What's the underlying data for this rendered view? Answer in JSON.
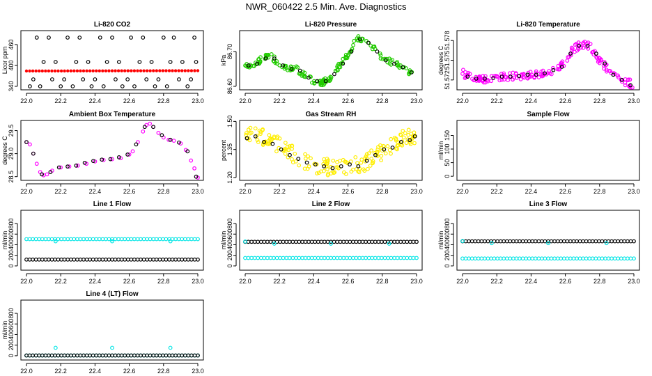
{
  "title": "NWR_060422  2.5 Min. Ave. Diagnostics",
  "chart_data": [
    {
      "type": "scatter",
      "title": "Li-820 CO2",
      "ylabel": "Licor ppm",
      "xlim": [
        22.0,
        23.0
      ],
      "ylim": [
        330,
        500
      ],
      "xticks": [
        "22.0",
        "22.2",
        "22.4",
        "22.6",
        "22.8",
        "23.0"
      ],
      "yticks": [
        {
          "v": 340,
          "label": "340"
        },
        {
          "v": 400,
          "label": "400"
        },
        {
          "v": 460,
          "label": "460"
        }
      ],
      "series": [
        {
          "color": "#ff0000",
          "shape": "dot",
          "points": "band",
          "x": [
            22.0,
            23.0
          ],
          "y": [
            384,
            385
          ]
        },
        {
          "color": "#000000",
          "shape": "ring",
          "x": [
            22.02,
            22.06,
            22.1,
            22.15,
            22.2,
            22.24,
            22.29,
            22.33,
            22.38,
            22.43,
            22.47,
            22.52,
            22.56,
            22.61,
            22.66,
            22.7,
            22.75,
            22.8,
            22.84,
            22.89,
            22.94,
            22.98
          ],
          "y": [
            340,
            480,
            410,
            360,
            340,
            480,
            410,
            360,
            340,
            480,
            410,
            360,
            340,
            480,
            410,
            360,
            340,
            480,
            410,
            360,
            340,
            480
          ]
        },
        {
          "color": "#000000",
          "shape": "ring",
          "x": [
            22.04,
            22.08,
            22.13,
            22.17,
            22.22,
            22.27,
            22.31,
            22.36,
            22.4,
            22.45,
            22.5,
            22.54,
            22.59,
            22.63,
            22.68,
            22.73,
            22.77,
            22.82,
            22.86,
            22.91,
            22.96,
            22.99
          ],
          "y": [
            360,
            340,
            480,
            410,
            360,
            340,
            480,
            410,
            360,
            340,
            480,
            410,
            360,
            340,
            480,
            410,
            360,
            340,
            480,
            410,
            360,
            410
          ]
        }
      ]
    },
    {
      "type": "scatter",
      "title": "Li-820 Pressure",
      "ylabel": "kPa",
      "xlim": [
        22.0,
        23.0
      ],
      "ylim": [
        86.59,
        86.76
      ],
      "xticks": [
        "22.0",
        "22.2",
        "22.4",
        "22.6",
        "22.8",
        "23.0"
      ],
      "yticks": [
        {
          "v": 86.6,
          "label": "86.60"
        },
        {
          "v": 86.7,
          "label": "86.70"
        }
      ],
      "series": [
        {
          "color": "#22cc00",
          "shape": "ring",
          "spread": 0.008,
          "x": [
            22.0,
            22.05,
            22.1,
            22.15,
            22.2,
            22.25,
            22.3,
            22.35,
            22.4,
            22.45,
            22.5,
            22.55,
            22.6,
            22.65,
            22.7,
            22.75,
            22.8,
            22.85,
            22.9,
            22.95,
            23.0
          ],
          "y": [
            86.66,
            86.66,
            86.68,
            86.69,
            86.66,
            86.65,
            86.65,
            86.63,
            86.615,
            86.61,
            86.625,
            86.66,
            86.69,
            86.74,
            86.73,
            86.71,
            86.68,
            86.67,
            86.66,
            86.64,
            86.64
          ]
        },
        {
          "color": "#000000",
          "shape": "ring",
          "x": [
            22.02,
            22.07,
            22.12,
            22.17,
            22.22,
            22.27,
            22.32,
            22.37,
            22.42,
            22.47,
            22.52,
            22.57,
            22.62,
            22.67,
            22.72,
            22.77,
            22.82,
            22.87,
            22.92,
            22.97
          ],
          "y": [
            86.66,
            86.665,
            86.68,
            86.68,
            86.66,
            86.65,
            86.645,
            86.625,
            86.615,
            86.615,
            86.635,
            86.665,
            86.7,
            86.735,
            86.725,
            86.7,
            86.675,
            86.665,
            86.655,
            86.64
          ]
        }
      ]
    },
    {
      "type": "scatter",
      "title": "Li-820 Temperature",
      "ylabel": "degrees C",
      "xlim": [
        22.0,
        23.0
      ],
      "ylim": [
        51.5705,
        51.5795
      ],
      "xticks": [
        "22.0",
        "22.2",
        "22.4",
        "22.6",
        "22.8",
        "23.0"
      ],
      "yticks": [
        {
          "v": 51.572,
          "label": "51.572"
        },
        {
          "v": 51.575,
          "label": "51.575"
        },
        {
          "v": 51.578,
          "label": "51.578"
        }
      ],
      "series": [
        {
          "color": "#ff00ff",
          "shape": "ring",
          "spread": 0.0006,
          "x": [
            22.0,
            22.05,
            22.1,
            22.15,
            22.2,
            22.25,
            22.3,
            22.35,
            22.4,
            22.45,
            22.5,
            22.55,
            22.6,
            22.65,
            22.7,
            22.75,
            22.8,
            22.85,
            22.9,
            22.95,
            23.0
          ],
          "y": [
            51.573,
            51.5725,
            51.5722,
            51.5722,
            51.5723,
            51.5725,
            51.5725,
            51.5726,
            51.5728,
            51.5728,
            51.573,
            51.5735,
            51.575,
            51.5768,
            51.5775,
            51.577,
            51.575,
            51.5735,
            51.5725,
            51.5718,
            51.5712
          ]
        },
        {
          "color": "#000000",
          "shape": "ring",
          "x": [
            22.03,
            22.08,
            22.13,
            22.18,
            22.23,
            22.28,
            22.33,
            22.38,
            22.43,
            22.48,
            22.53,
            22.58,
            22.63,
            22.68,
            22.73,
            22.78,
            22.83,
            22.88,
            22.93,
            22.98
          ],
          "y": [
            51.5725,
            51.5722,
            51.5722,
            51.5723,
            51.5725,
            51.5725,
            51.5726,
            51.5728,
            51.5728,
            51.573,
            51.5735,
            51.574,
            51.576,
            51.5772,
            51.5772,
            51.576,
            51.5745,
            51.5728,
            51.572,
            51.5712
          ]
        }
      ]
    },
    {
      "type": "scatter",
      "title": "Ambient Box Temperature",
      "ylabel": "degrees C",
      "xlim": [
        22.0,
        23.0
      ],
      "ylim": [
        28.42,
        29.72
      ],
      "xticks": [
        "22.0",
        "22.2",
        "22.4",
        "22.6",
        "22.8",
        "23.0"
      ],
      "yticks": [
        {
          "v": 28.5,
          "label": "28.5"
        },
        {
          "v": 29.0,
          "label": "29.0"
        },
        {
          "v": 29.5,
          "label": "29.5"
        }
      ],
      "series": [
        {
          "color": "#ff00ff",
          "shape": "ring",
          "x": [
            22.0,
            22.02,
            22.04,
            22.06,
            22.08,
            22.1,
            22.12,
            22.15,
            22.2,
            22.25,
            22.3,
            22.35,
            22.4,
            22.45,
            22.5,
            22.55,
            22.6,
            22.62,
            22.65,
            22.68,
            22.7,
            22.72,
            22.74,
            22.77,
            22.8,
            22.83,
            22.86,
            22.9,
            22.93,
            22.96,
            22.98,
            23.0
          ],
          "y": [
            29.25,
            29.2,
            29.0,
            28.78,
            28.6,
            28.53,
            28.55,
            28.63,
            28.7,
            28.72,
            28.74,
            28.78,
            28.83,
            28.86,
            28.88,
            28.9,
            28.98,
            29.05,
            29.25,
            29.48,
            29.62,
            29.65,
            29.58,
            29.45,
            29.35,
            29.3,
            29.28,
            29.22,
            29.08,
            28.85,
            28.68,
            28.48
          ]
        },
        {
          "color": "#000000",
          "shape": "ring",
          "x": [
            22.0,
            22.04,
            22.09,
            22.14,
            22.19,
            22.24,
            22.29,
            22.34,
            22.39,
            22.44,
            22.49,
            22.54,
            22.59,
            22.64,
            22.69,
            22.74,
            22.79,
            22.84,
            22.89,
            22.94,
            22.99
          ],
          "y": [
            29.25,
            29.0,
            28.55,
            28.6,
            28.7,
            28.72,
            28.74,
            28.8,
            28.84,
            28.87,
            28.88,
            28.92,
            28.98,
            29.2,
            29.58,
            29.58,
            29.4,
            29.3,
            29.24,
            29.05,
            28.5
          ]
        }
      ]
    },
    {
      "type": "scatter",
      "title": "Gas Stream RH",
      "ylabel": "percent",
      "xlim": [
        22.0,
        23.0
      ],
      "ylim": [
        1.185,
        1.505
      ],
      "xticks": [
        "22.0",
        "22.2",
        "22.4",
        "22.6",
        "22.8",
        "23.0"
      ],
      "yticks": [
        {
          "v": 1.2,
          "label": "1.20"
        },
        {
          "v": 1.35,
          "label": "1.35"
        },
        {
          "v": 1.5,
          "label": "1.50"
        }
      ],
      "series": [
        {
          "color": "#ffee00",
          "shape": "ring",
          "spread": 0.045,
          "x": [
            22.0,
            22.05,
            22.1,
            22.15,
            22.2,
            22.25,
            22.3,
            22.35,
            22.4,
            22.45,
            22.5,
            22.55,
            22.6,
            22.65,
            22.7,
            22.75,
            22.8,
            22.85,
            22.9,
            22.95,
            23.0
          ],
          "y": [
            1.42,
            1.43,
            1.42,
            1.4,
            1.37,
            1.34,
            1.31,
            1.29,
            1.27,
            1.26,
            1.255,
            1.25,
            1.26,
            1.27,
            1.28,
            1.31,
            1.34,
            1.37,
            1.4,
            1.42,
            1.43
          ]
        },
        {
          "color": "#000000",
          "shape": "ring",
          "x": [
            22.01,
            22.06,
            22.11,
            22.16,
            22.21,
            22.26,
            22.31,
            22.36,
            22.41,
            22.46,
            22.51,
            22.56,
            22.61,
            22.66,
            22.71,
            22.76,
            22.81,
            22.86,
            22.91,
            22.96,
            22.99
          ],
          "y": [
            1.41,
            1.42,
            1.39,
            1.38,
            1.35,
            1.32,
            1.3,
            1.28,
            1.27,
            1.26,
            1.25,
            1.26,
            1.27,
            1.26,
            1.29,
            1.32,
            1.35,
            1.36,
            1.39,
            1.4,
            1.42
          ]
        }
      ]
    },
    {
      "type": "scatter",
      "title": "Sample Flow",
      "ylabel": "ml/min",
      "xlim": [
        22.0,
        23.0
      ],
      "ylim": [
        -15,
        205
      ],
      "xticks": [
        "22.0",
        "22.2",
        "22.4",
        "22.6",
        "22.8",
        "23.0"
      ],
      "yticks": [
        {
          "v": 0,
          "label": "0"
        },
        {
          "v": 50,
          "label": "50"
        },
        {
          "v": 100,
          "label": "100"
        },
        {
          "v": 150,
          "label": "150"
        }
      ],
      "series": []
    },
    {
      "type": "scatter",
      "title": "Line 1 Flow",
      "ylabel": "ml/min",
      "xlim": [
        22.0,
        23.0
      ],
      "ylim": [
        -80,
        1050
      ],
      "xticks": [
        "22.0",
        "22.2",
        "22.4",
        "22.6",
        "22.8",
        "23.0"
      ],
      "yticks": [
        {
          "v": 0,
          "label": "0"
        },
        {
          "v": 200,
          "label": "200"
        },
        {
          "v": 400,
          "label": "400"
        },
        {
          "v": 600,
          "label": "600"
        },
        {
          "v": 800,
          "label": "800"
        }
      ],
      "series": [
        {
          "color": "#00e5e5",
          "shape": "ring",
          "points": "band",
          "x": [
            22.0,
            23.0
          ],
          "y": [
            505,
            505
          ]
        },
        {
          "color": "#00e5e5",
          "shape": "ring",
          "x": [
            22.17,
            22.5,
            22.84
          ],
          "y": [
            465,
            465,
            465
          ]
        },
        {
          "color": "#000000",
          "shape": "ring",
          "points": "band",
          "x": [
            22.0,
            23.0
          ],
          "y": [
            120,
            120
          ]
        }
      ]
    },
    {
      "type": "scatter",
      "title": "Line 2 Flow",
      "ylabel": "ml/min",
      "xlim": [
        22.0,
        23.0
      ],
      "ylim": [
        -80,
        1050
      ],
      "xticks": [
        "22.0",
        "22.2",
        "22.4",
        "22.6",
        "22.8",
        "23.0"
      ],
      "yticks": [
        {
          "v": 0,
          "label": "0"
        },
        {
          "v": 200,
          "label": "200"
        },
        {
          "v": 400,
          "label": "400"
        },
        {
          "v": 600,
          "label": "600"
        },
        {
          "v": 800,
          "label": "800"
        }
      ],
      "series": [
        {
          "color": "#00e5e5",
          "shape": "ring",
          "points": "band",
          "x": [
            22.0,
            23.0
          ],
          "y": [
            150,
            150
          ]
        },
        {
          "color": "#000000",
          "shape": "ring",
          "points": "band",
          "x": [
            22.0,
            23.0
          ],
          "y": [
            455,
            455
          ]
        },
        {
          "color": "#00e5e5",
          "shape": "ring",
          "x": [
            22.0,
            22.17,
            22.5,
            22.84
          ],
          "y": [
            460,
            420,
            420,
            420
          ]
        }
      ]
    },
    {
      "type": "scatter",
      "title": "Line 3 Flow",
      "ylabel": "ml/min",
      "xlim": [
        22.0,
        23.0
      ],
      "ylim": [
        -80,
        1050
      ],
      "xticks": [
        "22.0",
        "22.2",
        "22.4",
        "22.6",
        "22.8",
        "23.0"
      ],
      "yticks": [
        {
          "v": 0,
          "label": "0"
        },
        {
          "v": 200,
          "label": "200"
        },
        {
          "v": 400,
          "label": "400"
        },
        {
          "v": 600,
          "label": "600"
        },
        {
          "v": 800,
          "label": "800"
        }
      ],
      "series": [
        {
          "color": "#00e5e5",
          "shape": "ring",
          "points": "band",
          "x": [
            22.0,
            23.0
          ],
          "y": [
            140,
            140
          ]
        },
        {
          "color": "#000000",
          "shape": "ring",
          "points": "band",
          "x": [
            22.0,
            23.0
          ],
          "y": [
            465,
            465
          ]
        },
        {
          "color": "#00e5e5",
          "shape": "ring",
          "x": [
            22.0,
            22.17,
            22.5,
            22.84
          ],
          "y": [
            470,
            430,
            430,
            430
          ]
        }
      ]
    },
    {
      "type": "scatter",
      "title": "Line 4 (LT) Flow",
      "ylabel": "ml/min",
      "xlim": [
        22.0,
        23.0
      ],
      "ylim": [
        -80,
        1050
      ],
      "xticks": [
        "22.0",
        "22.2",
        "22.4",
        "22.6",
        "22.8",
        "23.0"
      ],
      "yticks": [
        {
          "v": 0,
          "label": "0"
        },
        {
          "v": 200,
          "label": "200"
        },
        {
          "v": 400,
          "label": "400"
        },
        {
          "v": 600,
          "label": "600"
        },
        {
          "v": 800,
          "label": "800"
        }
      ],
      "series": [
        {
          "color": "#00e5e5",
          "shape": "ring",
          "points": "band",
          "x": [
            22.0,
            23.0
          ],
          "y": [
            5,
            5
          ]
        },
        {
          "color": "#000000",
          "shape": "ring",
          "points": "band",
          "x": [
            22.0,
            23.0
          ],
          "y": [
            5,
            5
          ]
        },
        {
          "color": "#00e5e5",
          "shape": "ring",
          "x": [
            22.17,
            22.5,
            22.84
          ],
          "y": [
            150,
            150,
            150
          ]
        }
      ]
    }
  ]
}
